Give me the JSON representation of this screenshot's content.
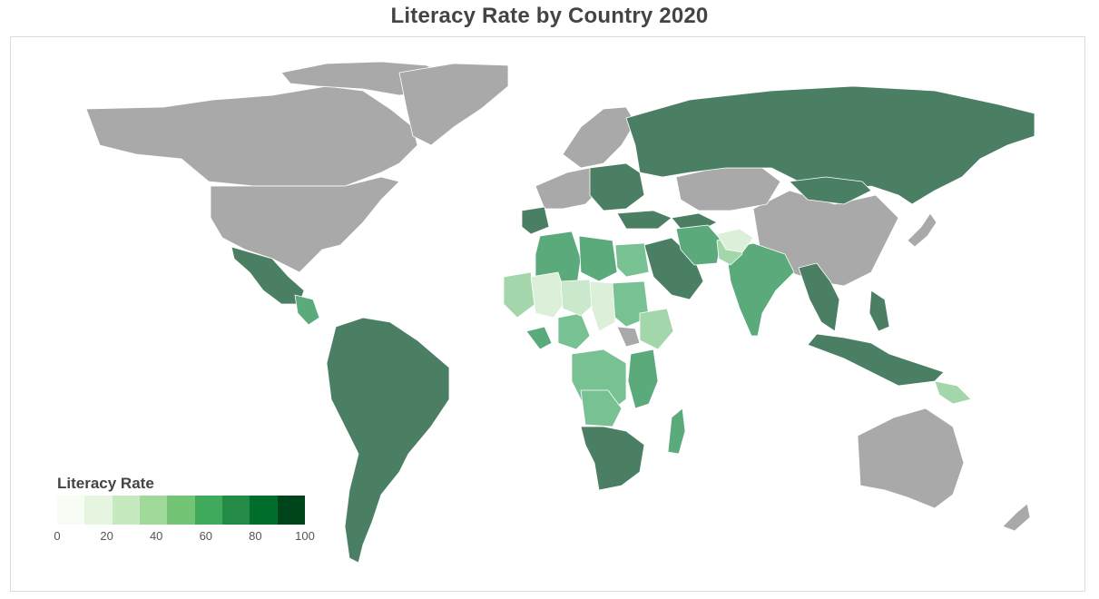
{
  "title": "Literacy Rate by Country 2020",
  "legend": {
    "title": "Literacy Rate",
    "ticks": [
      "0",
      "20",
      "40",
      "60",
      "80",
      "100"
    ],
    "colors": [
      "#f7fcf5",
      "#e5f5e0",
      "#c7e9c0",
      "#a1d99b",
      "#74c476",
      "#41ab5d",
      "#238b45",
      "#006d2c",
      "#00441b"
    ]
  },
  "colors": {
    "no_data": "#a9a9a9",
    "high": "#4a7f63",
    "mid_high": "#5aaa7c",
    "mid": "#78c193",
    "low_mid": "#a3d6ab",
    "low": "#c9e8cc",
    "very_low": "#dbefd9"
  },
  "chart_data": {
    "type": "choropleth",
    "title": "Literacy Rate by Country 2020",
    "value_name": "Literacy Rate",
    "scale": [
      0,
      100
    ],
    "no_data_regions": [
      "Canada",
      "United States",
      "Greenland",
      "Western Europe",
      "Scandinavia",
      "China",
      "Central Asia",
      "Japan",
      "Australia",
      "New Zealand",
      "Somalia",
      "Guyana"
    ],
    "regions": [
      {
        "name": "Russia",
        "level": "high"
      },
      {
        "name": "Brazil",
        "level": "high"
      },
      {
        "name": "Argentina",
        "level": "high"
      },
      {
        "name": "South America (other)",
        "level": "high"
      },
      {
        "name": "Mexico",
        "level": "high"
      },
      {
        "name": "Central America",
        "level": "mid_high"
      },
      {
        "name": "Iberia",
        "level": "high"
      },
      {
        "name": "Eastern Europe",
        "level": "high"
      },
      {
        "name": "Turkey",
        "level": "high"
      },
      {
        "name": "Saudi Arabia",
        "level": "high"
      },
      {
        "name": "Iran",
        "level": "mid_high"
      },
      {
        "name": "Pakistan",
        "level": "low_mid"
      },
      {
        "name": "Afghanistan",
        "level": "very_low"
      },
      {
        "name": "India",
        "level": "mid_high"
      },
      {
        "name": "Mongolia",
        "level": "high"
      },
      {
        "name": "Southeast Asia",
        "level": "high"
      },
      {
        "name": "Indonesia",
        "level": "high"
      },
      {
        "name": "Papua New Guinea",
        "level": "low_mid"
      },
      {
        "name": "Algeria",
        "level": "mid_high"
      },
      {
        "name": "Libya",
        "level": "mid_high"
      },
      {
        "name": "Egypt",
        "level": "mid"
      },
      {
        "name": "Mali",
        "level": "very_low"
      },
      {
        "name": "Niger",
        "level": "very_low"
      },
      {
        "name": "Chad",
        "level": "very_low"
      },
      {
        "name": "Sudan",
        "level": "mid"
      },
      {
        "name": "Ethiopia",
        "level": "low_mid"
      },
      {
        "name": "Nigeria",
        "level": "mid"
      },
      {
        "name": "Central Africa",
        "level": "mid"
      },
      {
        "name": "East Africa",
        "level": "mid_high"
      },
      {
        "name": "Southern Africa",
        "level": "high"
      },
      {
        "name": "Madagascar",
        "level": "mid_high"
      }
    ]
  }
}
